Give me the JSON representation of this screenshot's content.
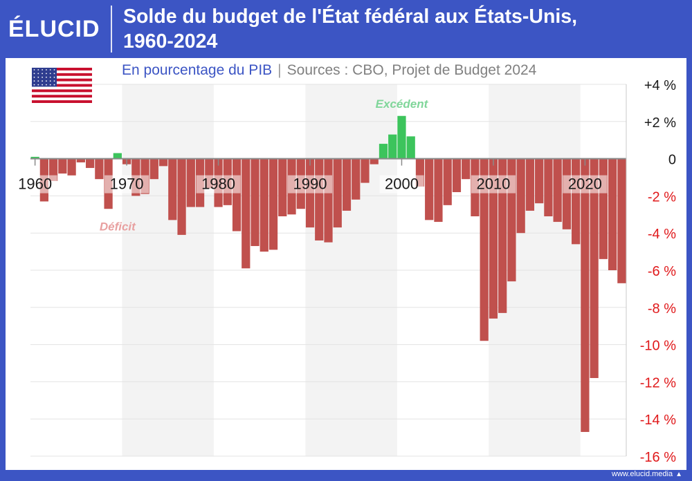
{
  "header": {
    "logo": "ÉLUCID",
    "title_line1": "Solde du budget de l'État fédéral aux États-Unis,",
    "title_line2": "1960-2024"
  },
  "subtitle": {
    "measure": "En pourcentage du PIB",
    "separator": "|",
    "sources": "Sources : CBO, Projet de Budget 2024"
  },
  "footer": {
    "site": "www.elucid.media"
  },
  "colors": {
    "brand": "#3c55c4",
    "deficit": "#c0504d",
    "surplus": "#3cc45c",
    "deficit_label": "#e8a0a0",
    "surplus_label": "#80d69a",
    "negative_tick": "#e0191b"
  },
  "chart_data": {
    "type": "bar",
    "ylabel": "",
    "ylim": [
      -16,
      4
    ],
    "y_ticks": [
      {
        "value": 4,
        "label": "+4 %"
      },
      {
        "value": 2,
        "label": "+2 %"
      },
      {
        "value": 0,
        "label": "0"
      },
      {
        "value": -2,
        "label": "-2 %"
      },
      {
        "value": -4,
        "label": "-4 %"
      },
      {
        "value": -6,
        "label": "-6 %"
      },
      {
        "value": -8,
        "label": "-8 %"
      },
      {
        "value": -10,
        "label": "-10 %"
      },
      {
        "value": -12,
        "label": "-12 %"
      },
      {
        "value": -14,
        "label": "-14 %"
      },
      {
        "value": -16,
        "label": "-16 %"
      }
    ],
    "x_ticks": [
      "1960",
      "1970",
      "1980",
      "1990",
      "2000",
      "2010",
      "2020"
    ],
    "years": [
      1960,
      1961,
      1962,
      1963,
      1964,
      1965,
      1966,
      1967,
      1968,
      1969,
      1970,
      1971,
      1972,
      1973,
      1974,
      1975,
      1976,
      1977,
      1978,
      1979,
      1980,
      1981,
      1982,
      1983,
      1984,
      1985,
      1986,
      1987,
      1988,
      1989,
      1990,
      1991,
      1992,
      1993,
      1994,
      1995,
      1996,
      1997,
      1998,
      1999,
      2000,
      2001,
      2002,
      2003,
      2004,
      2005,
      2006,
      2007,
      2008,
      2009,
      2010,
      2011,
      2012,
      2013,
      2014,
      2015,
      2016,
      2017,
      2018,
      2019,
      2020,
      2021,
      2022,
      2023,
      2024
    ],
    "values": [
      0.1,
      -2.3,
      -1.2,
      -0.8,
      -0.9,
      -0.2,
      -0.5,
      -1.1,
      -2.7,
      0.3,
      -0.3,
      -2.0,
      -1.9,
      -1.1,
      -0.4,
      -3.3,
      -4.1,
      -2.6,
      -2.6,
      -1.6,
      -2.6,
      -2.5,
      -3.9,
      -5.9,
      -4.7,
      -5.0,
      -4.9,
      -3.1,
      -3.0,
      -2.7,
      -3.7,
      -4.4,
      -4.5,
      -3.7,
      -2.8,
      -2.2,
      -1.3,
      -0.3,
      0.8,
      1.3,
      2.3,
      1.2,
      -1.5,
      -3.3,
      -3.4,
      -2.5,
      -1.8,
      -1.1,
      -3.1,
      -9.8,
      -8.6,
      -8.3,
      -6.6,
      -4.0,
      -2.8,
      -2.4,
      -3.1,
      -3.4,
      -3.8,
      -4.6,
      -14.7,
      -11.8,
      -5.4,
      -6.0,
      -6.7
    ],
    "annotations": [
      {
        "text": "Excédent",
        "year": 2000,
        "value": 3.0
      },
      {
        "text": "Déficit",
        "year": 1969,
        "value": -3.6
      }
    ]
  }
}
